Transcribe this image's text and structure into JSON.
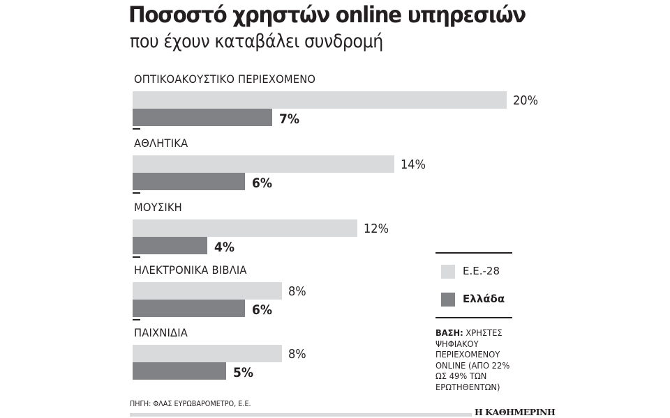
{
  "header": {
    "title": "Ποσοστό χρηστών online υπηρεσιών",
    "subtitle": "που έχουν καταβάλει συνδρομή"
  },
  "legend": {
    "items": [
      {
        "label": "Ε.Ε.-28",
        "color": "#d9dadb"
      },
      {
        "label": "Ελλάδα",
        "color": "#808285"
      }
    ]
  },
  "categories": [
    {
      "label": "ΟΠΤΙΚΟΑΚΟΥΣΤΙΚΟ ΠΕΡΙΕΧΟΜΕΝΟ",
      "eu": 20,
      "eu_label": "20%",
      "gr": 7,
      "gr_label": "7%"
    },
    {
      "label": "ΑΘΛΗΤΙΚΑ",
      "eu": 14,
      "eu_label": "14%",
      "gr": 6,
      "gr_label": "6%"
    },
    {
      "label": "ΜΟΥΣΙΚΗ",
      "eu": 12,
      "eu_label": "12%",
      "gr": 4,
      "gr_label": "4%"
    },
    {
      "label": "ΗΛΕΚΤΡΟΝΙΚΑ ΒΙΒΛΙΑ",
      "eu": 8,
      "eu_label": "8%",
      "gr": 6,
      "gr_label": "6%"
    },
    {
      "label": "ΠΑΙΧΝΙΔΙΑ",
      "eu": 8,
      "eu_label": "8%",
      "gr": 5,
      "gr_label": "5%"
    }
  ],
  "note": {
    "bold": "ΒΑΣΗ:",
    "text": " ΧΡΗΣΤΕΣ ΨΗΦΙΑΚΟΥ ΠΕΡΙΕΧΟΜΕΝΟΥ ONLINE (ΑΠΟ 22% ΩΣ 49% ΤΩΝ ΕΡΩΤΗΘΕΝΤΩΝ)"
  },
  "source": "ΠΗΓΗ: ΦΛΑΣ ΕΥΡΩΒΑΡΟΜΕΤΡΟ, Ε.Ε.",
  "brand": "Η ΚΑΘΗΜΕΡΙΝΗ",
  "chart_data": {
    "type": "bar",
    "orientation": "horizontal",
    "title": "Ποσοστό χρηστών online υπηρεσιών",
    "subtitle": "που έχουν καταβάλει συνδρομή",
    "categories": [
      "ΟΠΤΙΚΟΑΚΟΥΣΤΙΚΟ ΠΕΡΙΕΧΟΜΕΝΟ",
      "ΑΘΛΗΤΙΚΑ",
      "ΜΟΥΣΙΚΗ",
      "ΗΛΕΚΤΡΟΝΙΚΑ ΒΙΒΛΙΑ",
      "ΠΑΙΧΝΙΔΙΑ"
    ],
    "series": [
      {
        "name": "Ε.Ε.-28",
        "color": "#d9dadb",
        "values": [
          20,
          14,
          12,
          8,
          8
        ]
      },
      {
        "name": "Ελλάδα",
        "color": "#808285",
        "values": [
          7,
          6,
          4,
          6,
          5
        ]
      }
    ],
    "unit": "%",
    "xlabel": "",
    "ylabel": "",
    "grid": false,
    "legend_position": "right",
    "annotations": [
      "ΒΑΣΗ: ΧΡΗΣΤΕΣ ΨΗΦΙΑΚΟΥ ΠΕΡΙΕΧΟΜΕΝΟΥ ONLINE (ΑΠΟ 22% ΩΣ 49% ΤΩΝ ΕΡΩΤΗΘΕΝΤΩΝ)",
      "ΠΗΓΗ: ΦΛΑΣ ΕΥΡΩΒΑΡΟΜΕΤΡΟ, Ε.Ε."
    ]
  }
}
